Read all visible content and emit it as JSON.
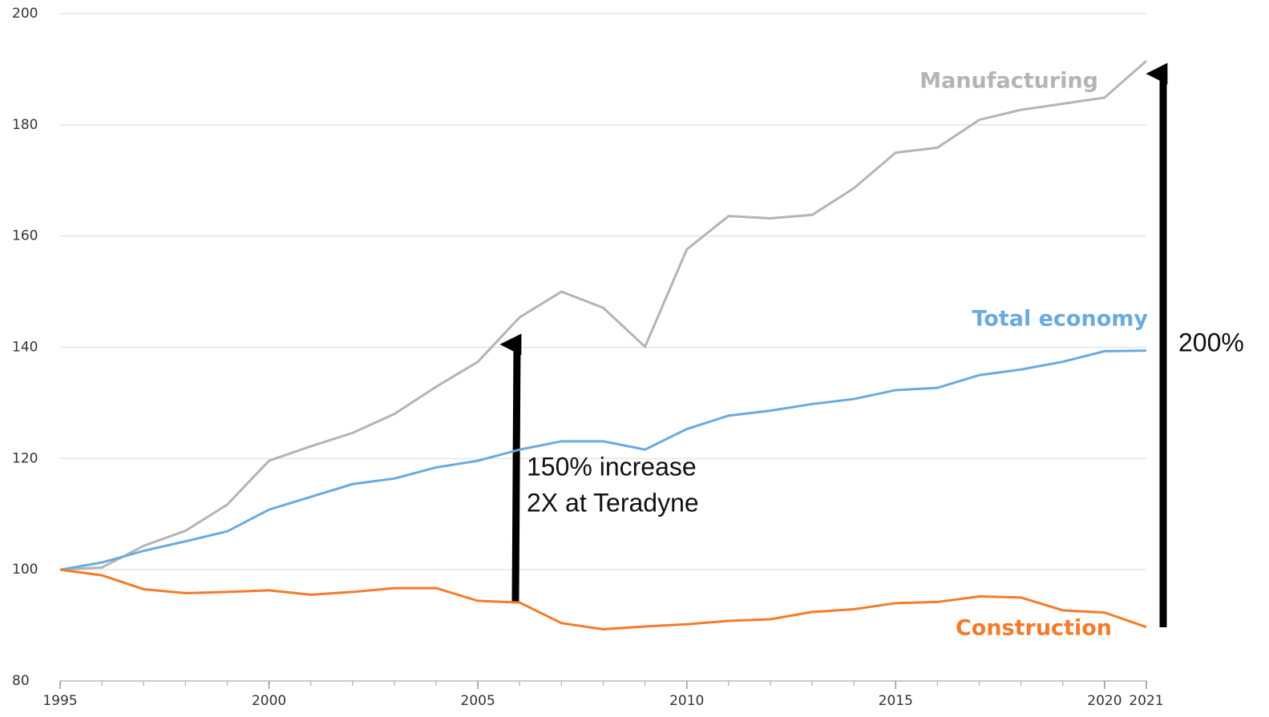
{
  "chart_data": {
    "type": "line",
    "x": [
      1995,
      1996,
      1997,
      1998,
      1999,
      2000,
      2001,
      2002,
      2003,
      2004,
      2005,
      2006,
      2007,
      2008,
      2009,
      2010,
      2011,
      2012,
      2013,
      2014,
      2015,
      2016,
      2017,
      2018,
      2019,
      2020,
      2021
    ],
    "series": [
      {
        "name": "Manufacturing",
        "color": "#b4b4b4",
        "values": [
          100,
          100.4,
          104.3,
          107,
          111.7,
          119.6,
          122.2,
          124.6,
          128,
          132.9,
          137.4,
          145.4,
          150,
          147.1,
          140.1,
          157.6,
          163.6,
          163.2,
          163.8,
          168.6,
          175,
          175.9,
          180.9,
          182.7,
          183.8,
          184.9,
          191.5
        ]
      },
      {
        "name": "Total economy",
        "color": "#6aaade",
        "values": [
          100,
          101.3,
          103.4,
          105.1,
          106.9,
          110.8,
          113.1,
          115.4,
          116.4,
          118.4,
          119.6,
          121.6,
          123.1,
          123.1,
          121.6,
          125.3,
          127.7,
          128.6,
          129.8,
          130.7,
          132.3,
          132.7,
          135,
          136,
          137.4,
          139.3,
          139.4
        ]
      },
      {
        "name": "Construction",
        "color": "#f47b2a",
        "values": [
          100,
          99,
          96.5,
          95.8,
          96,
          96.3,
          95.5,
          96,
          96.7,
          96.7,
          94.4,
          94.1,
          90.4,
          89.3,
          89.8,
          90.2,
          90.8,
          91.1,
          92.4,
          92.9,
          94,
          94.2,
          95.2,
          95,
          92.7,
          92.3,
          89.7
        ]
      }
    ],
    "xlim": [
      1995,
      2021
    ],
    "xticks": [
      1995,
      2000,
      2005,
      2010,
      2015,
      2020,
      2021
    ],
    "ylim": [
      80,
      200
    ],
    "yticks": [
      80,
      100,
      120,
      140,
      160,
      180,
      200
    ],
    "grid": true,
    "annotations": [
      "150% increase",
      "2X at Teradyne",
      "200%"
    ]
  }
}
